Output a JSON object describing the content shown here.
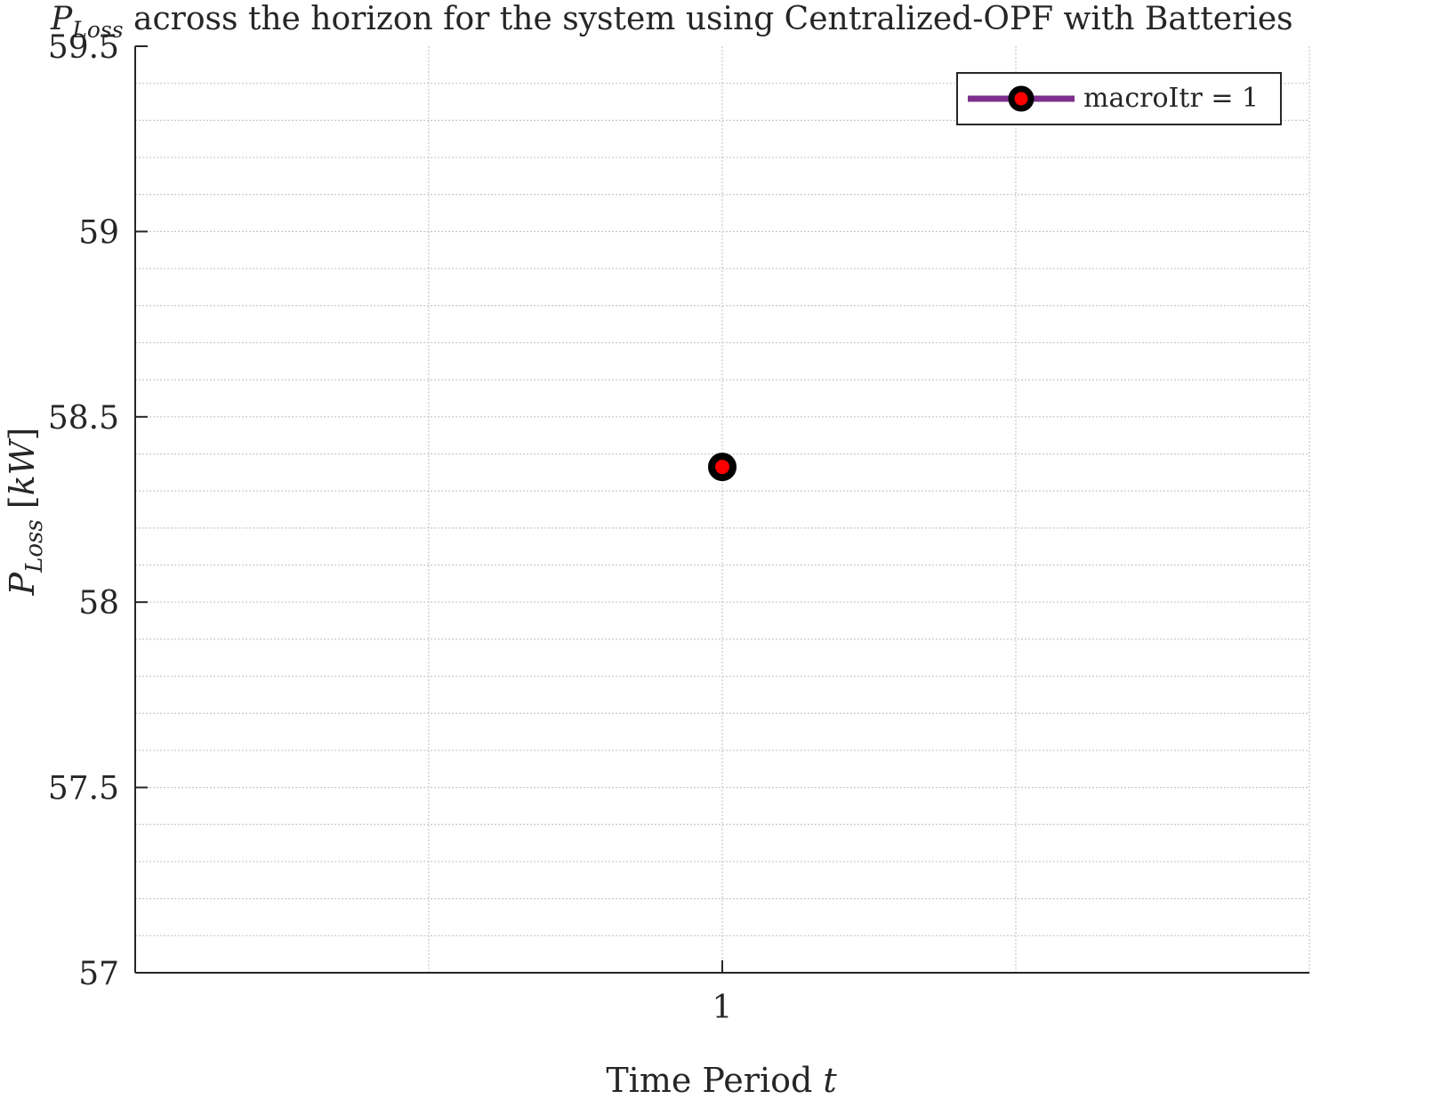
{
  "chart_data": {
    "type": "line",
    "title": {
      "symbol_main": "P",
      "symbol_sub": "Loss",
      "text": " across the horizon for the system using Centralized-OPF with Batteries"
    },
    "xlabel": {
      "text": "Time Period ",
      "symbol": "t"
    },
    "ylabel": {
      "symbol_main": "P",
      "symbol_sub": "Loss",
      "unit_open": " [",
      "unit": "kW",
      "unit_close": "]"
    },
    "xlim": [
      0,
      2
    ],
    "ylim": [
      57,
      59.5
    ],
    "xticks": [
      1
    ],
    "xtick_labels": [
      "1"
    ],
    "yticks": [
      57,
      57.5,
      58,
      58.5,
      59,
      59.5
    ],
    "ytick_labels": [
      "57",
      "57.5",
      "58",
      "58.5",
      "59",
      "59.5"
    ],
    "grid": true,
    "minor_grid": true,
    "legend_position": "top-right",
    "series": [
      {
        "name": "macroItr = 1",
        "x": [
          1
        ],
        "y": [
          58.365
        ],
        "line_color": "#7E2F8E",
        "marker_edge_color": "#000000",
        "marker_face_color": "#FF0000"
      }
    ]
  }
}
